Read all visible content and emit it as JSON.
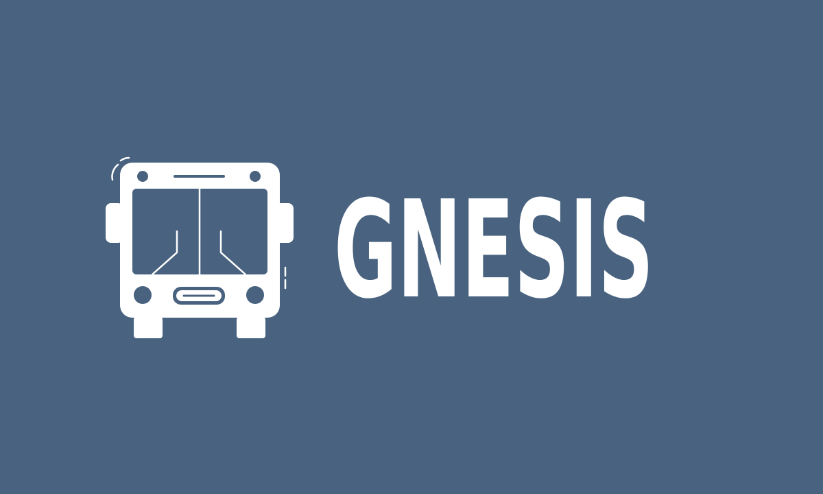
{
  "logo": {
    "wordmark": "GNESIS"
  }
}
